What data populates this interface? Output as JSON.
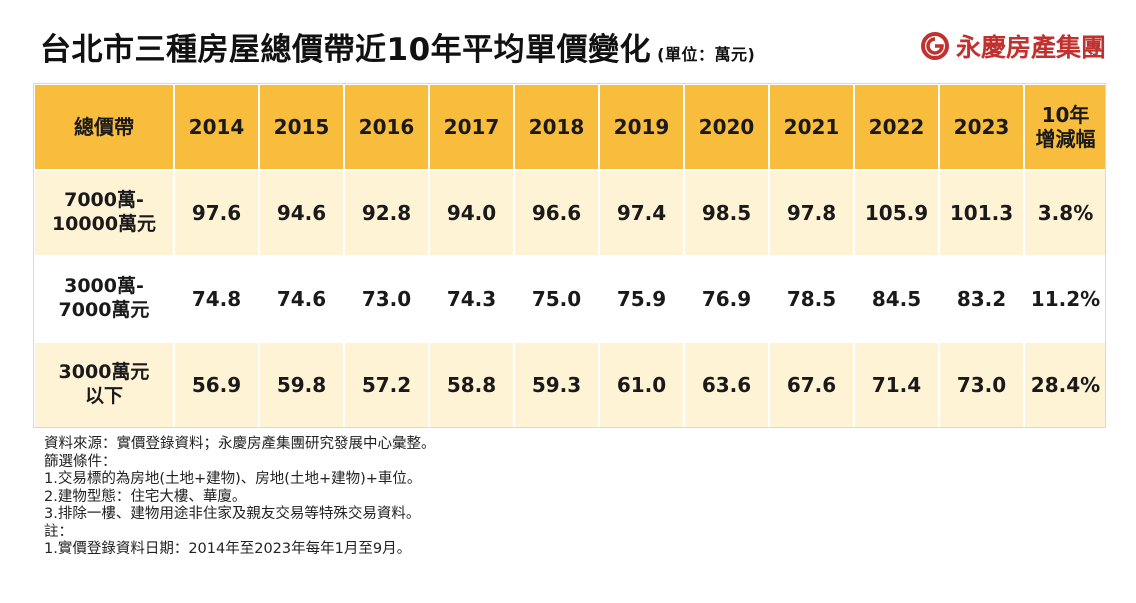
{
  "title": "台北市三種房屋總價帶近10年平均單價變化",
  "unit": "(單位：萬元)",
  "brand": "永慶房產集團",
  "chart_data": {
    "type": "table",
    "columns": [
      "總價帶",
      "2014",
      "2015",
      "2016",
      "2017",
      "2018",
      "2019",
      "2020",
      "2021",
      "2022",
      "2023",
      "10年\n增減幅"
    ],
    "rows": [
      {
        "label": "7000萬-\n10000萬元",
        "values": [
          "97.6",
          "94.6",
          "92.8",
          "94.0",
          "96.6",
          "97.4",
          "98.5",
          "97.8",
          "105.9",
          "101.3",
          "3.8%"
        ]
      },
      {
        "label": "3000萬-\n7000萬元",
        "values": [
          "74.8",
          "74.6",
          "73.0",
          "74.3",
          "75.0",
          "75.9",
          "76.9",
          "78.5",
          "84.5",
          "83.2",
          "11.2%"
        ]
      },
      {
        "label": "3000萬元\n以下",
        "values": [
          "56.9",
          "59.8",
          "57.2",
          "58.8",
          "59.3",
          "61.0",
          "63.6",
          "67.6",
          "71.4",
          "73.0",
          "28.4%"
        ]
      }
    ]
  },
  "notes": [
    "資料來源：實價登錄資料；永慶房產集團研究發展中心彙整。",
    "篩選條件：",
    "1.交易標的為房地(土地+建物)、房地(土地+建物)+車位。",
    "2.建物型態：住宅大樓、華廈。",
    "3.排除一樓、建物用途非住家及親友交易等特殊交易資料。",
    "註：",
    "1.實價登錄資料日期：2014年至2023年每年1月至9月。"
  ],
  "colors": {
    "header_bg": "#f9bd3d",
    "row_odd_bg": "#fff3d6",
    "row_even_bg": "#ffffff",
    "brand": "#c0312f"
  },
  "icons": {
    "brand_logo": "swirl-logo-icon"
  }
}
